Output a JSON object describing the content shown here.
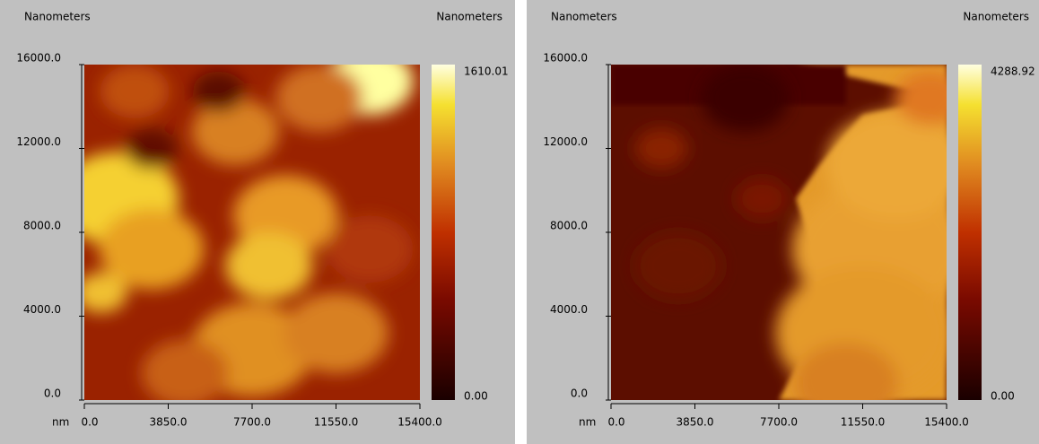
{
  "panels": [
    {
      "y_axis_label": "Nanometers",
      "colorbar_label": "Nanometers",
      "yticks": [
        "16000.0",
        "12000.0",
        "8000.0",
        "4000.0",
        "0.0"
      ],
      "x_unit": "nm",
      "xticks": [
        "0.0",
        "3850.0",
        "7700.0",
        "11550.0",
        "15400.0"
      ],
      "colorbar_max": "1610.01",
      "colorbar_min": "0.00"
    },
    {
      "y_axis_label": "Nanometers",
      "colorbar_label": "Nanometers",
      "yticks": [
        "16000.0",
        "12000.0",
        "8000.0",
        "4000.0",
        "0.0"
      ],
      "x_unit": "nm",
      "xticks": [
        "0.0",
        "3850.0",
        "7700.0",
        "11550.0",
        "15400.0"
      ],
      "colorbar_max": "4288.92",
      "colorbar_min": "0.00"
    }
  ]
}
